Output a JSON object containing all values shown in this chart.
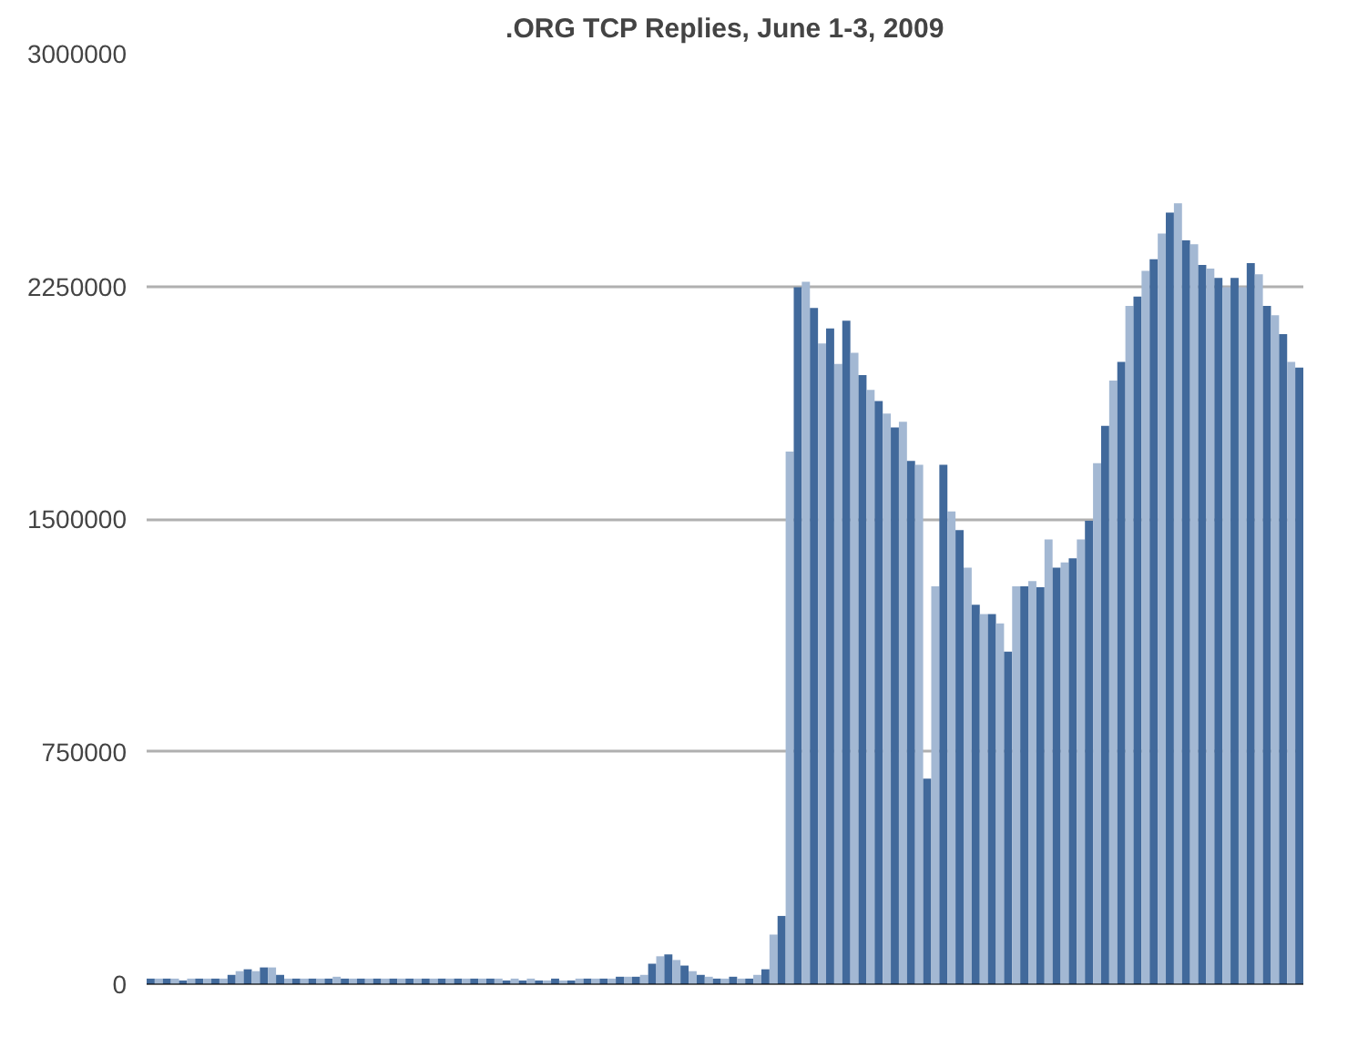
{
  "chart_data": {
    "type": "bar",
    "title": ".ORG TCP Replies, June 1-3, 2009",
    "categories": [
      null,
      null,
      null,
      null,
      null,
      null,
      null,
      null,
      null,
      null,
      null,
      null,
      null,
      null,
      null,
      null,
      null,
      null,
      null,
      null,
      null,
      null,
      null,
      null,
      null,
      null,
      null,
      null,
      null,
      null,
      null,
      null,
      null,
      null,
      null,
      null,
      null,
      null,
      null,
      null,
      null,
      null,
      null,
      null,
      null,
      null,
      null,
      null,
      null,
      null,
      null,
      null,
      null,
      null,
      null,
      null,
      null,
      null,
      null,
      null,
      null,
      null,
      null,
      null,
      null,
      null,
      null,
      null,
      null,
      null,
      null,
      null,
      null,
      null,
      null,
      null,
      null,
      null,
      null,
      null,
      null,
      null,
      null,
      null,
      null,
      null,
      null,
      null,
      null,
      null,
      null,
      null,
      null,
      null,
      null,
      null,
      null,
      null,
      null,
      null,
      null,
      null,
      null,
      null,
      null,
      null,
      null,
      null,
      null,
      null,
      null,
      null,
      null,
      null,
      null,
      null,
      null,
      null,
      null,
      null,
      null,
      null,
      null,
      null,
      null,
      null,
      null,
      null,
      null,
      null,
      null,
      null,
      null,
      null,
      null,
      null,
      null,
      null,
      null,
      null,
      null,
      null,
      null
    ],
    "values": [
      18000,
      18000,
      18000,
      18000,
      12000,
      18000,
      18000,
      18000,
      18000,
      18000,
      30000,
      42000,
      48000,
      42000,
      54000,
      54000,
      30000,
      18000,
      18000,
      18000,
      18000,
      18000,
      18000,
      24000,
      18000,
      18000,
      18000,
      18000,
      18000,
      18000,
      18000,
      18000,
      18000,
      18000,
      18000,
      18000,
      18000,
      18000,
      18000,
      18000,
      18000,
      18000,
      18000,
      18000,
      12000,
      18000,
      12000,
      18000,
      12000,
      12000,
      18000,
      12000,
      12000,
      18000,
      18000,
      18000,
      18000,
      18000,
      24000,
      24000,
      24000,
      30000,
      66000,
      90000,
      96000,
      78000,
      60000,
      42000,
      30000,
      24000,
      18000,
      18000,
      24000,
      18000,
      18000,
      30000,
      48000,
      160000,
      220000,
      1717000,
      2247000,
      2265000,
      2180000,
      2066000,
      2114000,
      2000000,
      2139000,
      2036000,
      1964000,
      1916000,
      1880000,
      1840000,
      1795000,
      1813000,
      1687000,
      1675000,
      663000,
      1283000,
      1675000,
      1524000,
      1464000,
      1343000,
      1223000,
      1193000,
      1193000,
      1163000,
      1072000,
      1283000,
      1283000,
      1300000,
      1280000,
      1434000,
      1343000,
      1360000,
      1373000,
      1434000,
      1494000,
      1680000,
      1800000,
      1946000,
      2006000,
      2187000,
      2217000,
      2300000,
      2337000,
      2420000,
      2488000,
      2518000,
      2398000,
      2386000,
      2319000,
      2307000,
      2277000,
      2247000,
      2277000,
      2247000,
      2325000,
      2289000,
      2187000,
      2157000,
      2096000,
      2006000,
      1988000
    ],
    "colors": [
      "#41699b",
      "#a3b8d3",
      "#41699b",
      "#a3b8d3",
      "#41699b",
      "#a3b8d3",
      "#41699b",
      "#a3b8d3",
      "#41699b",
      "#a3b8d3",
      "#41699b",
      "#a3b8d3",
      "#41699b",
      "#a3b8d3",
      "#41699b",
      "#a3b8d3",
      "#41699b",
      "#a3b8d3",
      "#41699b",
      "#a3b8d3",
      "#41699b",
      "#a3b8d3",
      "#41699b",
      "#a3b8d3",
      "#41699b",
      "#a3b8d3",
      "#41699b",
      "#a3b8d3",
      "#41699b",
      "#a3b8d3",
      "#41699b",
      "#a3b8d3",
      "#41699b",
      "#a3b8d3",
      "#41699b",
      "#a3b8d3",
      "#41699b",
      "#a3b8d3",
      "#41699b",
      "#a3b8d3",
      "#41699b",
      "#a3b8d3",
      "#41699b",
      "#a3b8d3",
      "#41699b",
      "#a3b8d3",
      "#41699b",
      "#a3b8d3",
      "#41699b",
      "#a3b8d3",
      "#41699b",
      "#a3b8d3",
      "#41699b",
      "#a3b8d3",
      "#41699b",
      "#a3b8d3",
      "#41699b",
      "#a3b8d3",
      "#41699b",
      "#a3b8d3",
      "#41699b",
      "#a3b8d3",
      "#41699b",
      "#a3b8d3",
      "#41699b",
      "#a3b8d3",
      "#41699b",
      "#a3b8d3",
      "#41699b",
      "#a3b8d3",
      "#41699b",
      "#a3b8d3",
      "#41699b",
      "#a3b8d3",
      "#41699b",
      "#a3b8d3",
      "#41699b",
      "#a3b8d3",
      "#41699b",
      "#a3b8d3",
      "#41699b",
      "#a3b8d3",
      "#41699b",
      "#a3b8d3",
      "#41699b",
      "#a3b8d3",
      "#41699b",
      "#a3b8d3",
      "#41699b",
      "#a3b8d3",
      "#41699b",
      "#a3b8d3",
      "#41699b",
      "#a3b8d3",
      "#41699b",
      "#a3b8d3",
      "#41699b",
      "#a3b8d3",
      "#41699b",
      "#a3b8d3",
      "#41699b",
      "#a3b8d3",
      "#41699b",
      "#a3b8d3",
      "#41699b",
      "#a3b8d3",
      "#41699b",
      "#a3b8d3",
      "#41699b",
      "#a3b8d3",
      "#41699b",
      "#a3b8d3",
      "#41699b",
      "#a3b8d3",
      "#41699b",
      "#a3b8d3",
      "#41699b",
      "#a3b8d3",
      "#41699b",
      "#a3b8d3",
      "#41699b",
      "#a3b8d3",
      "#41699b",
      "#a3b8d3",
      "#41699b",
      "#a3b8d3",
      "#41699b",
      "#a3b8d3",
      "#41699b",
      "#a3b8d3",
      "#41699b",
      "#a3b8d3",
      "#41699b",
      "#a3b8d3",
      "#41699b",
      "#a3b8d3",
      "#41699b",
      "#a3b8d3",
      "#41699b",
      "#a3b8d3",
      "#41699b",
      "#a3b8d3",
      "#41699b"
    ],
    "ylim": [
      0,
      3000000
    ],
    "yticks": [
      0,
      750000,
      1500000,
      2250000,
      3000000
    ],
    "grid": "y",
    "tick_labels": "y"
  }
}
